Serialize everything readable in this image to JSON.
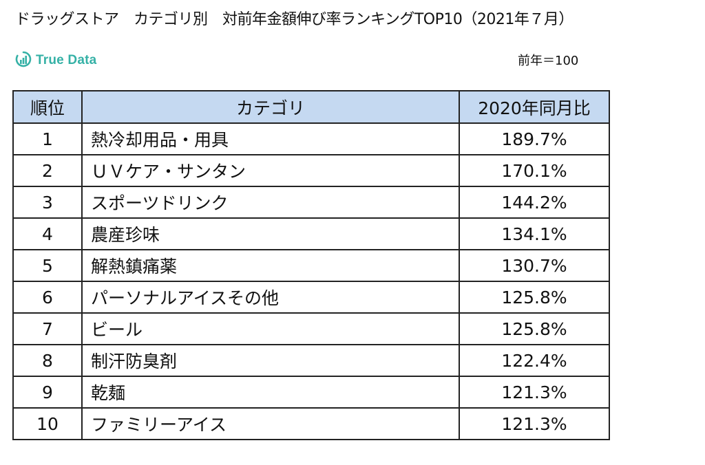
{
  "title": "ドラッグストア　カテゴリ別　対前年金額伸び率ランキングTOP10（2021年７月）",
  "logo": {
    "text": "True Data",
    "icon": "bar-chart-circle-icon",
    "color": "#35b1a6"
  },
  "base_note": "前年＝100",
  "table": {
    "header": {
      "rank": "順位",
      "category": "カテゴリ",
      "value": "2020年同月比"
    },
    "header_color": "#c5d9f1",
    "rows": [
      {
        "rank": "1",
        "category": "熱冷却用品・用具",
        "value": "189.7%"
      },
      {
        "rank": "2",
        "category": "ＵＶケア・サンタン",
        "value": "170.1%"
      },
      {
        "rank": "3",
        "category": "スポーツドリンク",
        "value": "144.2%"
      },
      {
        "rank": "4",
        "category": "農産珍味",
        "value": "134.1%"
      },
      {
        "rank": "5",
        "category": "解熱鎮痛薬",
        "value": "130.7%"
      },
      {
        "rank": "6",
        "category": "パーソナルアイスその他",
        "value": "125.8%"
      },
      {
        "rank": "7",
        "category": "ビール",
        "value": "125.8%"
      },
      {
        "rank": "8",
        "category": "制汗防臭剤",
        "value": "122.4%"
      },
      {
        "rank": "9",
        "category": "乾麺",
        "value": "121.3%"
      },
      {
        "rank": "10",
        "category": "ファミリーアイス",
        "value": "121.3%"
      }
    ]
  }
}
